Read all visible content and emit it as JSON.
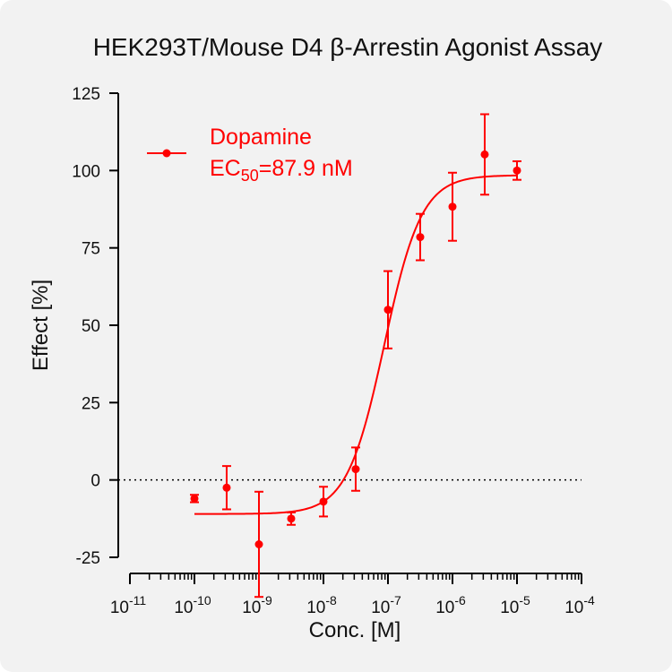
{
  "chart_data": {
    "type": "scatter",
    "title": "HEK293T/Mouse D4 β-Arrestin Agonist Assay",
    "xlabel": "Conc. [M]",
    "ylabel": "Effect  [%]",
    "x_scale": "log",
    "xlim": [
      1e-11,
      0.0001
    ],
    "ylim": [
      -25,
      125
    ],
    "x_ticks": [
      {
        "base": "10",
        "exp": "-11",
        "value": 1e-11
      },
      {
        "base": "10",
        "exp": "-10",
        "value": 1e-10
      },
      {
        "base": "10",
        "exp": "-9",
        "value": 1e-09
      },
      {
        "base": "10",
        "exp": "-8",
        "value": 1e-08
      },
      {
        "base": "10",
        "exp": "-7",
        "value": 1e-07
      },
      {
        "base": "10",
        "exp": "-6",
        "value": 1e-06
      },
      {
        "base": "10",
        "exp": "-5",
        "value": 1e-05
      },
      {
        "base": "10",
        "exp": "-4",
        "value": 0.0001
      }
    ],
    "y_ticks": [
      "-25",
      "0",
      "25",
      "50",
      "75",
      "100",
      "125"
    ],
    "grid": false,
    "reference_line": {
      "y": 0,
      "style": "dotted"
    },
    "legend": {
      "position": "top-left"
    },
    "series": [
      {
        "name": "Dopamine",
        "ec50_label": {
          "prefix": "EC",
          "sub": "50",
          "suffix": "=87.9 nM"
        },
        "color": "#ff0000",
        "fit": {
          "model": "four-parameter logistic",
          "bottom": -11,
          "top": 98.5,
          "ec50": 8.79e-08,
          "hill": 1.5
        },
        "points": [
          {
            "x": 1e-10,
            "y": -6,
            "err": 1.2
          },
          {
            "x": 3.16e-10,
            "y": -2.5,
            "err": 7
          },
          {
            "x": 1e-09,
            "y": -20.8,
            "err": 17
          },
          {
            "x": 3.16e-09,
            "y": -12.5,
            "err": 2
          },
          {
            "x": 1e-08,
            "y": -7,
            "err": 4.8
          },
          {
            "x": 3.16e-08,
            "y": 3.5,
            "err": 7
          },
          {
            "x": 1e-07,
            "y": 55,
            "err": 12.5
          },
          {
            "x": 3.16e-07,
            "y": 78.5,
            "err": 7.5
          },
          {
            "x": 1e-06,
            "y": 88.3,
            "err": 11
          },
          {
            "x": 3.16e-06,
            "y": 105.2,
            "err": 13
          },
          {
            "x": 1e-05,
            "y": 100,
            "err": 3
          }
        ]
      }
    ]
  }
}
